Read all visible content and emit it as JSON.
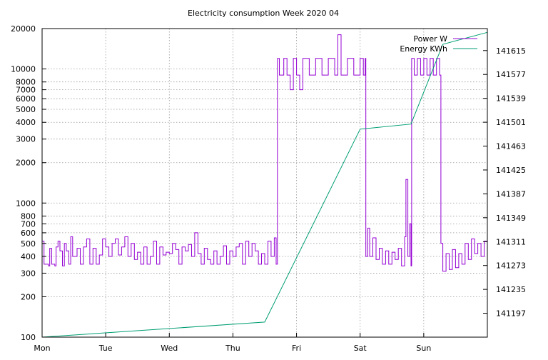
{
  "chart_data": {
    "type": "line",
    "title": "Electricity consumption Week 2020 04",
    "xlabel": "",
    "ylabel": "",
    "y2label": "",
    "x_unit": "days since Mon 00:00",
    "x_range": [
      0,
      7
    ],
    "x_ticks": [
      {
        "label": "Mon",
        "x": 0
      },
      {
        "label": "Tue",
        "x": 1
      },
      {
        "label": "Wed",
        "x": 2
      },
      {
        "label": "Thu",
        "x": 3
      },
      {
        "label": "Fri",
        "x": 4
      },
      {
        "label": "Sat",
        "x": 5
      },
      {
        "label": "Sun",
        "x": 6
      }
    ],
    "y_scale": "log",
    "ylim": [
      100,
      20000
    ],
    "y_ticks": [
      100,
      200,
      300,
      400,
      500,
      600,
      700,
      800,
      1000,
      2000,
      3000,
      4000,
      5000,
      6000,
      7000,
      8000,
      10000,
      20000
    ],
    "y2_scale": "linear",
    "y2lim": [
      141159,
      141650
    ],
    "y2_ticks": [
      141197,
      141235,
      141273,
      141311,
      141349,
      141387,
      141425,
      141463,
      141501,
      141539,
      141577,
      141615
    ],
    "grid": true,
    "legend_position": "top-right",
    "series": [
      {
        "name": "Power W",
        "color": "#9400d3",
        "axis": "y",
        "points": [
          [
            0.0,
            520
          ],
          [
            0.03,
            350
          ],
          [
            0.1,
            340
          ],
          [
            0.12,
            460
          ],
          [
            0.15,
            350
          ],
          [
            0.2,
            340
          ],
          [
            0.22,
            470
          ],
          [
            0.25,
            520
          ],
          [
            0.28,
            440
          ],
          [
            0.32,
            340
          ],
          [
            0.35,
            500
          ],
          [
            0.38,
            440
          ],
          [
            0.42,
            350
          ],
          [
            0.45,
            560
          ],
          [
            0.48,
            400
          ],
          [
            0.55,
            460
          ],
          [
            0.6,
            350
          ],
          [
            0.65,
            470
          ],
          [
            0.7,
            540
          ],
          [
            0.75,
            350
          ],
          [
            0.8,
            460
          ],
          [
            0.85,
            350
          ],
          [
            0.9,
            410
          ],
          [
            0.95,
            540
          ],
          [
            1.0,
            470
          ],
          [
            1.05,
            400
          ],
          [
            1.1,
            500
          ],
          [
            1.15,
            540
          ],
          [
            1.2,
            410
          ],
          [
            1.25,
            470
          ],
          [
            1.3,
            560
          ],
          [
            1.35,
            400
          ],
          [
            1.4,
            500
          ],
          [
            1.45,
            380
          ],
          [
            1.5,
            430
          ],
          [
            1.55,
            350
          ],
          [
            1.6,
            470
          ],
          [
            1.65,
            350
          ],
          [
            1.7,
            400
          ],
          [
            1.75,
            520
          ],
          [
            1.8,
            350
          ],
          [
            1.85,
            470
          ],
          [
            1.9,
            410
          ],
          [
            1.95,
            430
          ],
          [
            2.0,
            420
          ],
          [
            2.05,
            500
          ],
          [
            2.1,
            450
          ],
          [
            2.15,
            350
          ],
          [
            2.2,
            470
          ],
          [
            2.25,
            440
          ],
          [
            2.3,
            490
          ],
          [
            2.35,
            400
          ],
          [
            2.4,
            600
          ],
          [
            2.45,
            420
          ],
          [
            2.5,
            350
          ],
          [
            2.55,
            460
          ],
          [
            2.6,
            380
          ],
          [
            2.65,
            350
          ],
          [
            2.7,
            440
          ],
          [
            2.75,
            350
          ],
          [
            2.8,
            400
          ],
          [
            2.85,
            480
          ],
          [
            2.9,
            350
          ],
          [
            2.95,
            440
          ],
          [
            3.0,
            400
          ],
          [
            3.05,
            470
          ],
          [
            3.1,
            500
          ],
          [
            3.15,
            350
          ],
          [
            3.2,
            520
          ],
          [
            3.25,
            400
          ],
          [
            3.3,
            500
          ],
          [
            3.35,
            440
          ],
          [
            3.4,
            350
          ],
          [
            3.45,
            420
          ],
          [
            3.5,
            350
          ],
          [
            3.55,
            520
          ],
          [
            3.6,
            400
          ],
          [
            3.65,
            550
          ],
          [
            3.68,
            350
          ],
          [
            3.7,
            12000
          ],
          [
            3.73,
            9000
          ],
          [
            3.8,
            12000
          ],
          [
            3.85,
            9000
          ],
          [
            3.9,
            7000
          ],
          [
            3.95,
            12000
          ],
          [
            4.0,
            9000
          ],
          [
            4.05,
            7000
          ],
          [
            4.1,
            12000
          ],
          [
            4.2,
            9000
          ],
          [
            4.3,
            12000
          ],
          [
            4.4,
            9000
          ],
          [
            4.5,
            12000
          ],
          [
            4.6,
            9000
          ],
          [
            4.65,
            18000
          ],
          [
            4.7,
            9000
          ],
          [
            4.8,
            12000
          ],
          [
            4.9,
            9000
          ],
          [
            5.0,
            12000
          ],
          [
            5.05,
            9000
          ],
          [
            5.08,
            12000
          ],
          [
            5.09,
            400
          ],
          [
            5.12,
            650
          ],
          [
            5.15,
            400
          ],
          [
            5.2,
            550
          ],
          [
            5.25,
            380
          ],
          [
            5.3,
            460
          ],
          [
            5.35,
            350
          ],
          [
            5.4,
            440
          ],
          [
            5.45,
            350
          ],
          [
            5.5,
            430
          ],
          [
            5.55,
            380
          ],
          [
            5.6,
            460
          ],
          [
            5.65,
            340
          ],
          [
            5.7,
            560
          ],
          [
            5.72,
            1500
          ],
          [
            5.75,
            400
          ],
          [
            5.78,
            700
          ],
          [
            5.8,
            340
          ],
          [
            5.81,
            12000
          ],
          [
            5.85,
            9000
          ],
          [
            5.9,
            12000
          ],
          [
            5.95,
            9000
          ],
          [
            6.0,
            12000
          ],
          [
            6.05,
            9000
          ],
          [
            6.1,
            12000
          ],
          [
            6.15,
            9000
          ],
          [
            6.2,
            12000
          ],
          [
            6.25,
            9000
          ],
          [
            6.27,
            500
          ],
          [
            6.3,
            310
          ],
          [
            6.35,
            420
          ],
          [
            6.4,
            320
          ],
          [
            6.45,
            450
          ],
          [
            6.5,
            330
          ],
          [
            6.55,
            420
          ],
          [
            6.6,
            350
          ],
          [
            6.65,
            500
          ],
          [
            6.7,
            380
          ],
          [
            6.75,
            540
          ],
          [
            6.8,
            420
          ],
          [
            6.85,
            500
          ],
          [
            6.9,
            400
          ],
          [
            6.95,
            520
          ],
          [
            7.0,
            470
          ]
        ]
      },
      {
        "name": "Energy KWh",
        "color": "#009e73",
        "axis": "y2",
        "points": [
          [
            0.0,
            141159
          ],
          [
            3.5,
            141183
          ],
          [
            5.0,
            141490
          ],
          [
            5.8,
            141498
          ],
          [
            6.3,
            141625
          ],
          [
            7.0,
            141644
          ]
        ]
      }
    ]
  }
}
